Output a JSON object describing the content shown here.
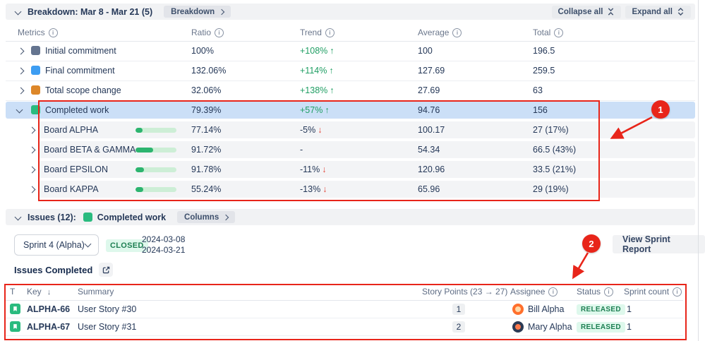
{
  "colors": {
    "annotation_red": "#e8251a",
    "selected_row_bg": "#cbdff7",
    "board_row_bg": "#f3f4f6",
    "progress_fill": "#2cb46f",
    "progress_track": "#cdeed6",
    "status_green_text": "#1d7f52",
    "status_green_bg": "#def8ec",
    "completed_green": "#2abb7f"
  },
  "breakdown_bar": {
    "title": "Breakdown: Mar 8 - Mar 21 (5)",
    "breakdown_button": "Breakdown",
    "collapse_all": "Collapse all",
    "expand_all": "Expand all"
  },
  "metrics_table": {
    "col_metrics": "Metrics",
    "col_ratio": "Ratio",
    "col_trend": "Trend",
    "col_average": "Average",
    "col_total": "Total",
    "rows": [
      {
        "kind": "metric",
        "chevron": "right",
        "icon_color": "#64748f",
        "label": "Initial commitment",
        "ratio": "100%",
        "trend": "+108%",
        "trend_dir": "up",
        "average": "100",
        "total": "196.5",
        "selected": false
      },
      {
        "kind": "metric",
        "chevron": "right",
        "icon_color": "#3d9df2",
        "label": "Final commitment",
        "ratio": "132.06%",
        "trend": "+114%",
        "trend_dir": "up",
        "average": "127.69",
        "total": "259.5",
        "selected": false
      },
      {
        "kind": "metric",
        "chevron": "right",
        "icon_color": "#dd8729",
        "label": "Total scope change",
        "ratio": "32.06%",
        "trend": "+138%",
        "trend_dir": "up",
        "average": "27.69",
        "total": "63",
        "selected": false
      },
      {
        "kind": "metric",
        "chevron": "down",
        "icon_color": "#2abb7f",
        "label": "Completed work",
        "ratio": "79.39%",
        "trend": "+57%",
        "trend_dir": "up",
        "average": "94.76",
        "total": "156",
        "selected": true
      },
      {
        "kind": "board",
        "chevron": "right",
        "progress_pct": 17,
        "label": "Board ALPHA",
        "ratio": "77.14%",
        "trend": "-5%",
        "trend_dir": "down",
        "average": "100.17",
        "total": "27 (17%)",
        "selected": false
      },
      {
        "kind": "board",
        "chevron": "right",
        "progress_pct": 43,
        "label": "Board BETA & GAMMA",
        "ratio": "91.72%",
        "trend": "-",
        "trend_dir": "none",
        "average": "54.34",
        "total": "66.5 (43%)",
        "selected": false
      },
      {
        "kind": "board",
        "chevron": "right",
        "progress_pct": 21,
        "label": "Board EPSILON",
        "ratio": "91.78%",
        "trend": "-11%",
        "trend_dir": "down",
        "average": "120.96",
        "total": "33.5 (21%)",
        "selected": false
      },
      {
        "kind": "board",
        "chevron": "right",
        "progress_pct": 19,
        "label": "Board KAPPA",
        "ratio": "55.24%",
        "trend": "-13%",
        "trend_dir": "down",
        "average": "65.96",
        "total": "29 (19%)",
        "selected": false
      }
    ]
  },
  "issues_bar": {
    "title": "Issues (12):",
    "filter_label": "Completed work",
    "columns_button": "Columns"
  },
  "sprint_bar": {
    "selector_value": "Sprint 4 (Alpha)",
    "state_badge": "CLOSED",
    "date_start": "2024-03-08",
    "date_end": "2024-03-21",
    "view_report_button": "View Sprint Report"
  },
  "issues_completed": {
    "label": "Issues Completed"
  },
  "issues_table": {
    "col_type": "T",
    "col_key": "Key",
    "col_summary": "Summary",
    "col_points": "Story Points (23 → 27)",
    "col_assignee": "Assignee",
    "col_status": "Status",
    "col_sprint_count": "Sprint count",
    "rows": [
      {
        "key": "ALPHA-66",
        "summary": "User Story #30",
        "points": "1",
        "assignee": "Bill Alpha",
        "avatar_bg": "#ff6f2c",
        "avatar_face": "#ffd9a8",
        "status": "RELEASED",
        "sprint_count": "1"
      },
      {
        "key": "ALPHA-67",
        "summary": "User Story #31",
        "points": "2",
        "assignee": "Mary Alpha",
        "avatar_bg": "#2b3a55",
        "avatar_face": "#ff7a4d",
        "status": "RELEASED",
        "sprint_count": "1"
      }
    ]
  },
  "annotations": {
    "badge1": "1",
    "badge2": "2"
  }
}
